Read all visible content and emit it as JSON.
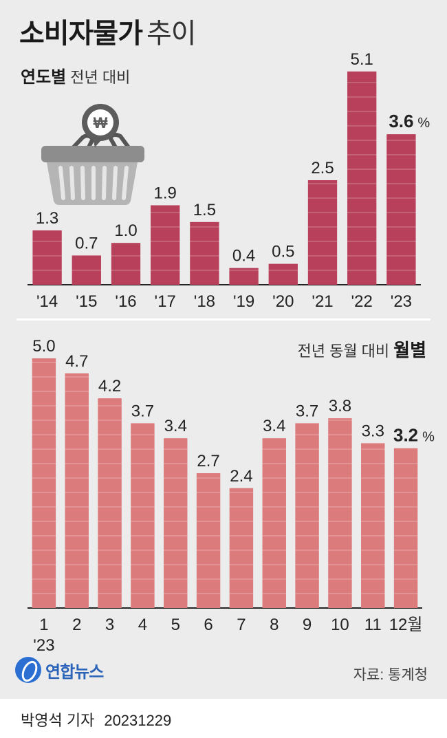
{
  "header": {
    "title": "소비자물가",
    "title_suffix": "추이",
    "subtitle_bold": "연도별",
    "subtitle_light": "전년 대비"
  },
  "monthly_header": {
    "light": "전년 동월 대비",
    "bold": "월별"
  },
  "footer": {
    "logo_text": "연합뉴스",
    "source": "자료: 통계청",
    "byline": "박영석 기자",
    "date": "20231229"
  },
  "icons": {
    "basket": "shopping-basket-icon",
    "won": "won-sign-icon"
  },
  "colors": {
    "annual_bar": "#b9405a",
    "monthly_bar": "#dc7b7b",
    "background": "#ececec"
  },
  "chart_data": [
    {
      "type": "bar",
      "title": "연도별",
      "categories": [
        "'14",
        "'15",
        "'16",
        "'17",
        "'18",
        "'19",
        "'20",
        "'21",
        "'22",
        "'23"
      ],
      "values": [
        1.3,
        0.7,
        1.0,
        1.9,
        1.5,
        0.4,
        0.5,
        2.5,
        5.1,
        3.6
      ],
      "labels": [
        "1.3",
        "0.7",
        "1.0",
        "1.9",
        "1.5",
        "0.4",
        "0.5",
        "2.5",
        "5.1",
        "3.6"
      ],
      "last_unit": "%",
      "ylim": [
        0,
        5.1
      ]
    },
    {
      "type": "bar",
      "title": "월별",
      "categories": [
        "1",
        "2",
        "3",
        "4",
        "5",
        "6",
        "7",
        "8",
        "9",
        "10",
        "11",
        "12월"
      ],
      "year_label": "'23",
      "values": [
        5.0,
        4.7,
        4.2,
        3.7,
        3.4,
        2.7,
        2.4,
        3.4,
        3.7,
        3.8,
        3.3,
        3.2
      ],
      "labels": [
        "5.0",
        "4.7",
        "4.2",
        "3.7",
        "3.4",
        "2.7",
        "2.4",
        "3.4",
        "3.7",
        "3.8",
        "3.3",
        "3.2"
      ],
      "last_unit": "%",
      "ylim": [
        0,
        5.0
      ]
    }
  ]
}
